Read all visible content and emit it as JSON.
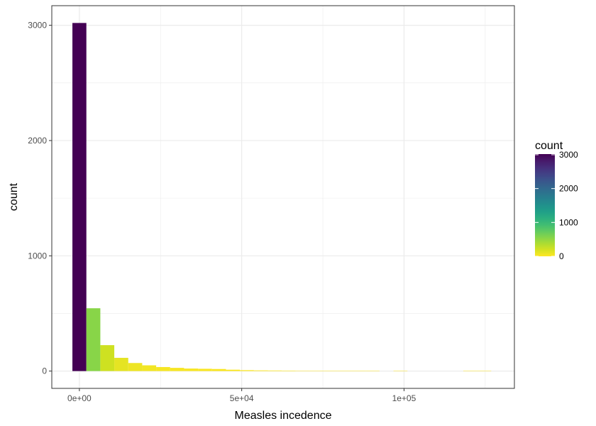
{
  "chart_data": {
    "type": "bar",
    "title": "",
    "xlabel": "Measles incedence",
    "ylabel": "count",
    "bin_width": 4300,
    "xlim": [
      -8500,
      134000
    ],
    "ylim": [
      -150,
      3170
    ],
    "x_ticks": [
      {
        "value": 0,
        "label": "0e+00"
      },
      {
        "value": 50000,
        "label": "5e+04"
      },
      {
        "value": 100000,
        "label": "1e+05"
      }
    ],
    "y_ticks": [
      {
        "value": 0,
        "label": "0"
      },
      {
        "value": 1000,
        "label": "1000"
      },
      {
        "value": 2000,
        "label": "2000"
      },
      {
        "value": 3000,
        "label": "3000"
      }
    ],
    "bins": [
      {
        "x": 0,
        "count": 3020
      },
      {
        "x": 4300,
        "count": 545
      },
      {
        "x": 8600,
        "count": 225
      },
      {
        "x": 12900,
        "count": 115
      },
      {
        "x": 17200,
        "count": 70
      },
      {
        "x": 21500,
        "count": 50
      },
      {
        "x": 25800,
        "count": 35
      },
      {
        "x": 30100,
        "count": 28
      },
      {
        "x": 34400,
        "count": 22
      },
      {
        "x": 38700,
        "count": 20
      },
      {
        "x": 43000,
        "count": 18
      },
      {
        "x": 47300,
        "count": 12
      },
      {
        "x": 51600,
        "count": 8
      },
      {
        "x": 55900,
        "count": 6
      },
      {
        "x": 60200,
        "count": 5
      },
      {
        "x": 64500,
        "count": 4
      },
      {
        "x": 68800,
        "count": 3
      },
      {
        "x": 73100,
        "count": 2
      },
      {
        "x": 77400,
        "count": 1
      },
      {
        "x": 81700,
        "count": 1
      },
      {
        "x": 86000,
        "count": 1
      },
      {
        "x": 90300,
        "count": 1
      },
      {
        "x": 94600,
        "count": 0
      },
      {
        "x": 98900,
        "count": 1
      },
      {
        "x": 103200,
        "count": 0
      },
      {
        "x": 107500,
        "count": 0
      },
      {
        "x": 111800,
        "count": 0
      },
      {
        "x": 116100,
        "count": 0
      },
      {
        "x": 120400,
        "count": 1
      },
      {
        "x": 124700,
        "count": 1
      }
    ],
    "legend": {
      "title": "count",
      "placement": "right",
      "range": [
        0,
        3020
      ],
      "ticks": [
        {
          "value": 0,
          "label": "0"
        },
        {
          "value": 1000,
          "label": "1000"
        },
        {
          "value": 2000,
          "label": "2000"
        },
        {
          "value": 3000,
          "label": "3000"
        }
      ]
    },
    "grid": true,
    "colors": {
      "palette": [
        "#fde725",
        "#c8e020",
        "#90d743",
        "#5ec962",
        "#35b779",
        "#20a486",
        "#21918c",
        "#287c8e",
        "#31688e",
        "#3b528b",
        "#443983",
        "#481f70",
        "#440154"
      ],
      "grid": "#ebebeb",
      "panel_border": "#333333"
    }
  }
}
